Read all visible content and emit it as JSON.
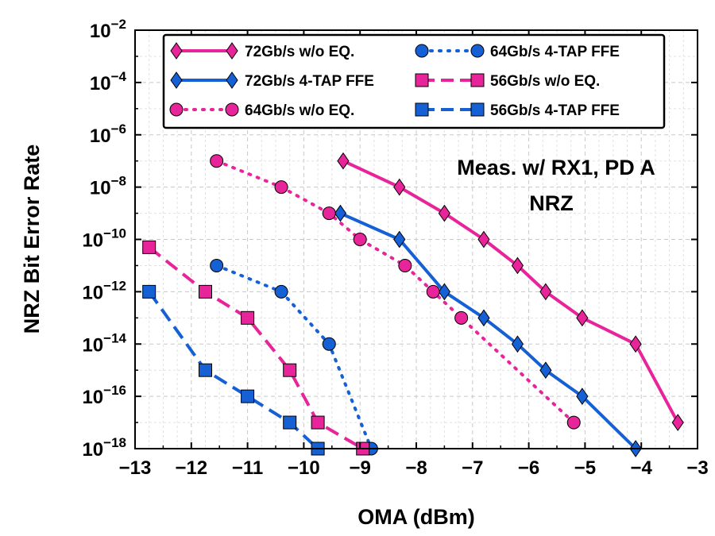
{
  "chart_data": {
    "type": "line",
    "xlabel": "OMA (dBm)",
    "ylabel": "NRZ Bit Error Rate",
    "xlim": [
      -13,
      -3
    ],
    "ylim_log10": [
      -18,
      -2
    ],
    "y_scale": "log",
    "grid": true,
    "legend_position": "top",
    "x_ticks": [
      -13,
      -12,
      -11,
      -10,
      -9,
      -8,
      -7,
      -6,
      -5,
      -4,
      -3
    ],
    "x_tick_labels": [
      "−13",
      "−12",
      "−11",
      "−10",
      "−9",
      "−8",
      "−7",
      "−6",
      "−5",
      "−4",
      "−3"
    ],
    "y_ticks": [
      -18,
      -16,
      -14,
      -12,
      -10,
      -8,
      -6,
      -4,
      -2
    ],
    "y_tick_base": "10",
    "annotations": [
      "Meas. w/ RX1, PD A",
      "NRZ"
    ],
    "series": [
      {
        "name": "72Gb/s w/o EQ.",
        "color": "#e8249a",
        "line": "solid",
        "marker": "diamond",
        "points": [
          [
            -9.3,
            -7
          ],
          [
            -8.3,
            -8
          ],
          [
            -7.5,
            -9
          ],
          [
            -6.8,
            -10
          ],
          [
            -6.2,
            -11
          ],
          [
            -5.7,
            -12
          ],
          [
            -5.05,
            -13
          ],
          [
            -4.1,
            -14
          ],
          [
            -3.35,
            -17
          ]
        ]
      },
      {
        "name": "72Gb/s 4-TAP FFE",
        "color": "#1560d4",
        "line": "solid",
        "marker": "diamond",
        "points": [
          [
            -9.35,
            -9
          ],
          [
            -8.3,
            -10
          ],
          [
            -7.5,
            -12
          ],
          [
            -6.8,
            -13
          ],
          [
            -6.2,
            -14
          ],
          [
            -5.7,
            -15
          ],
          [
            -5.05,
            -16
          ],
          [
            -4.1,
            -18
          ]
        ]
      },
      {
        "name": "64Gb/s w/o EQ.",
        "color": "#e8249a",
        "line": "dotted",
        "marker": "circle",
        "points": [
          [
            -11.55,
            -7
          ],
          [
            -10.4,
            -8
          ],
          [
            -9.55,
            -9
          ],
          [
            -9.0,
            -10
          ],
          [
            -8.2,
            -11
          ],
          [
            -7.7,
            -12
          ],
          [
            -7.2,
            -13
          ],
          [
            -5.2,
            -17
          ]
        ]
      },
      {
        "name": "64Gb/s 4-TAP FFE",
        "color": "#1560d4",
        "line": "dotted",
        "marker": "circle",
        "points": [
          [
            -11.55,
            -11
          ],
          [
            -10.4,
            -12
          ],
          [
            -9.55,
            -14
          ],
          [
            -8.8,
            -18
          ]
        ]
      },
      {
        "name": "56Gb/s w/o EQ.",
        "color": "#e8249a",
        "line": "dashed",
        "marker": "square",
        "points": [
          [
            -12.75,
            -10.3
          ],
          [
            -11.75,
            -12
          ],
          [
            -11.0,
            -13
          ],
          [
            -10.25,
            -15
          ],
          [
            -9.75,
            -17
          ],
          [
            -8.95,
            -18
          ]
        ]
      },
      {
        "name": "56Gb/s 4-TAP FFE",
        "color": "#1560d4",
        "line": "dashed",
        "marker": "square",
        "points": [
          [
            -12.75,
            -12
          ],
          [
            -11.75,
            -15
          ],
          [
            -11.0,
            -16
          ],
          [
            -10.25,
            -17
          ],
          [
            -9.75,
            -18
          ]
        ]
      }
    ]
  }
}
